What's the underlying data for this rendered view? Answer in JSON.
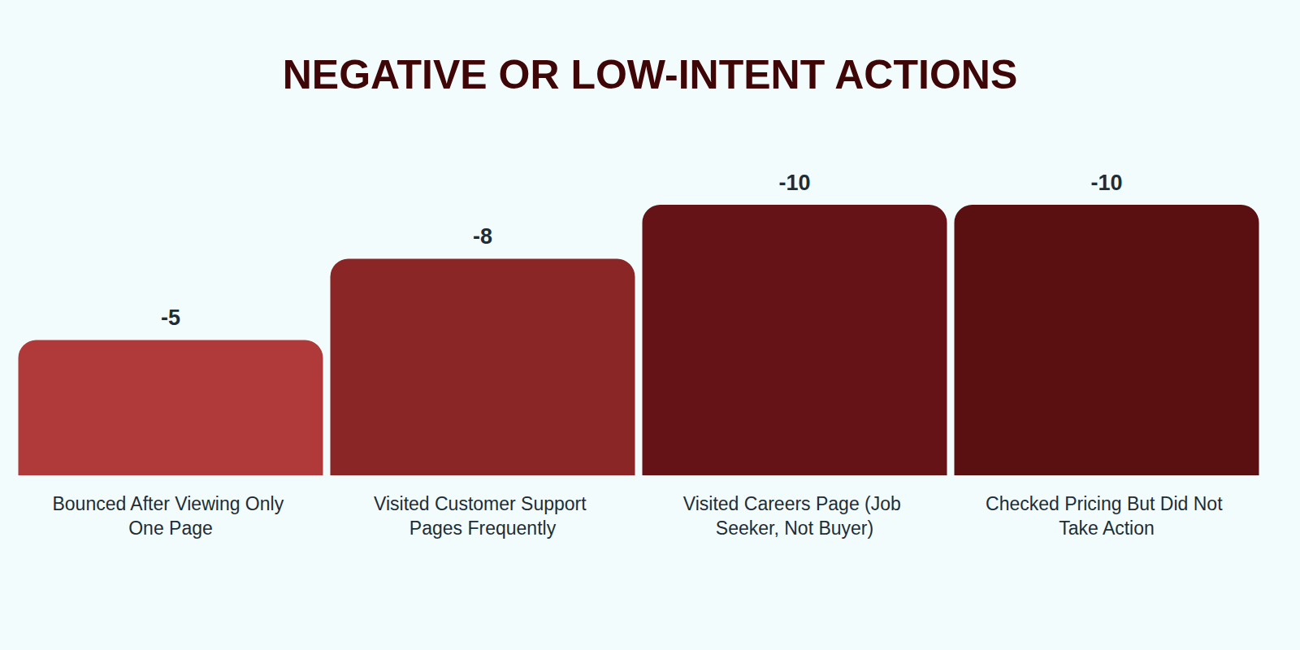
{
  "chart_data": {
    "type": "bar",
    "title": "NEGATIVE OR LOW-INTENT ACTIONS",
    "categories": [
      "Bounced After Viewing Only One Page",
      "Visited Customer Support Pages Frequently",
      "Visited Careers Page (Job Seeker, Not Buyer)",
      "Checked Pricing But Did Not Take Action"
    ],
    "values": [
      -5,
      -8,
      -10,
      -10
    ],
    "colors": [
      "#b03a3a",
      "#8b2626",
      "#651316",
      "#5a0f10"
    ],
    "ylim": [
      -10,
      0
    ],
    "grid": false,
    "data_labels": true,
    "tick_labels": "x"
  }
}
